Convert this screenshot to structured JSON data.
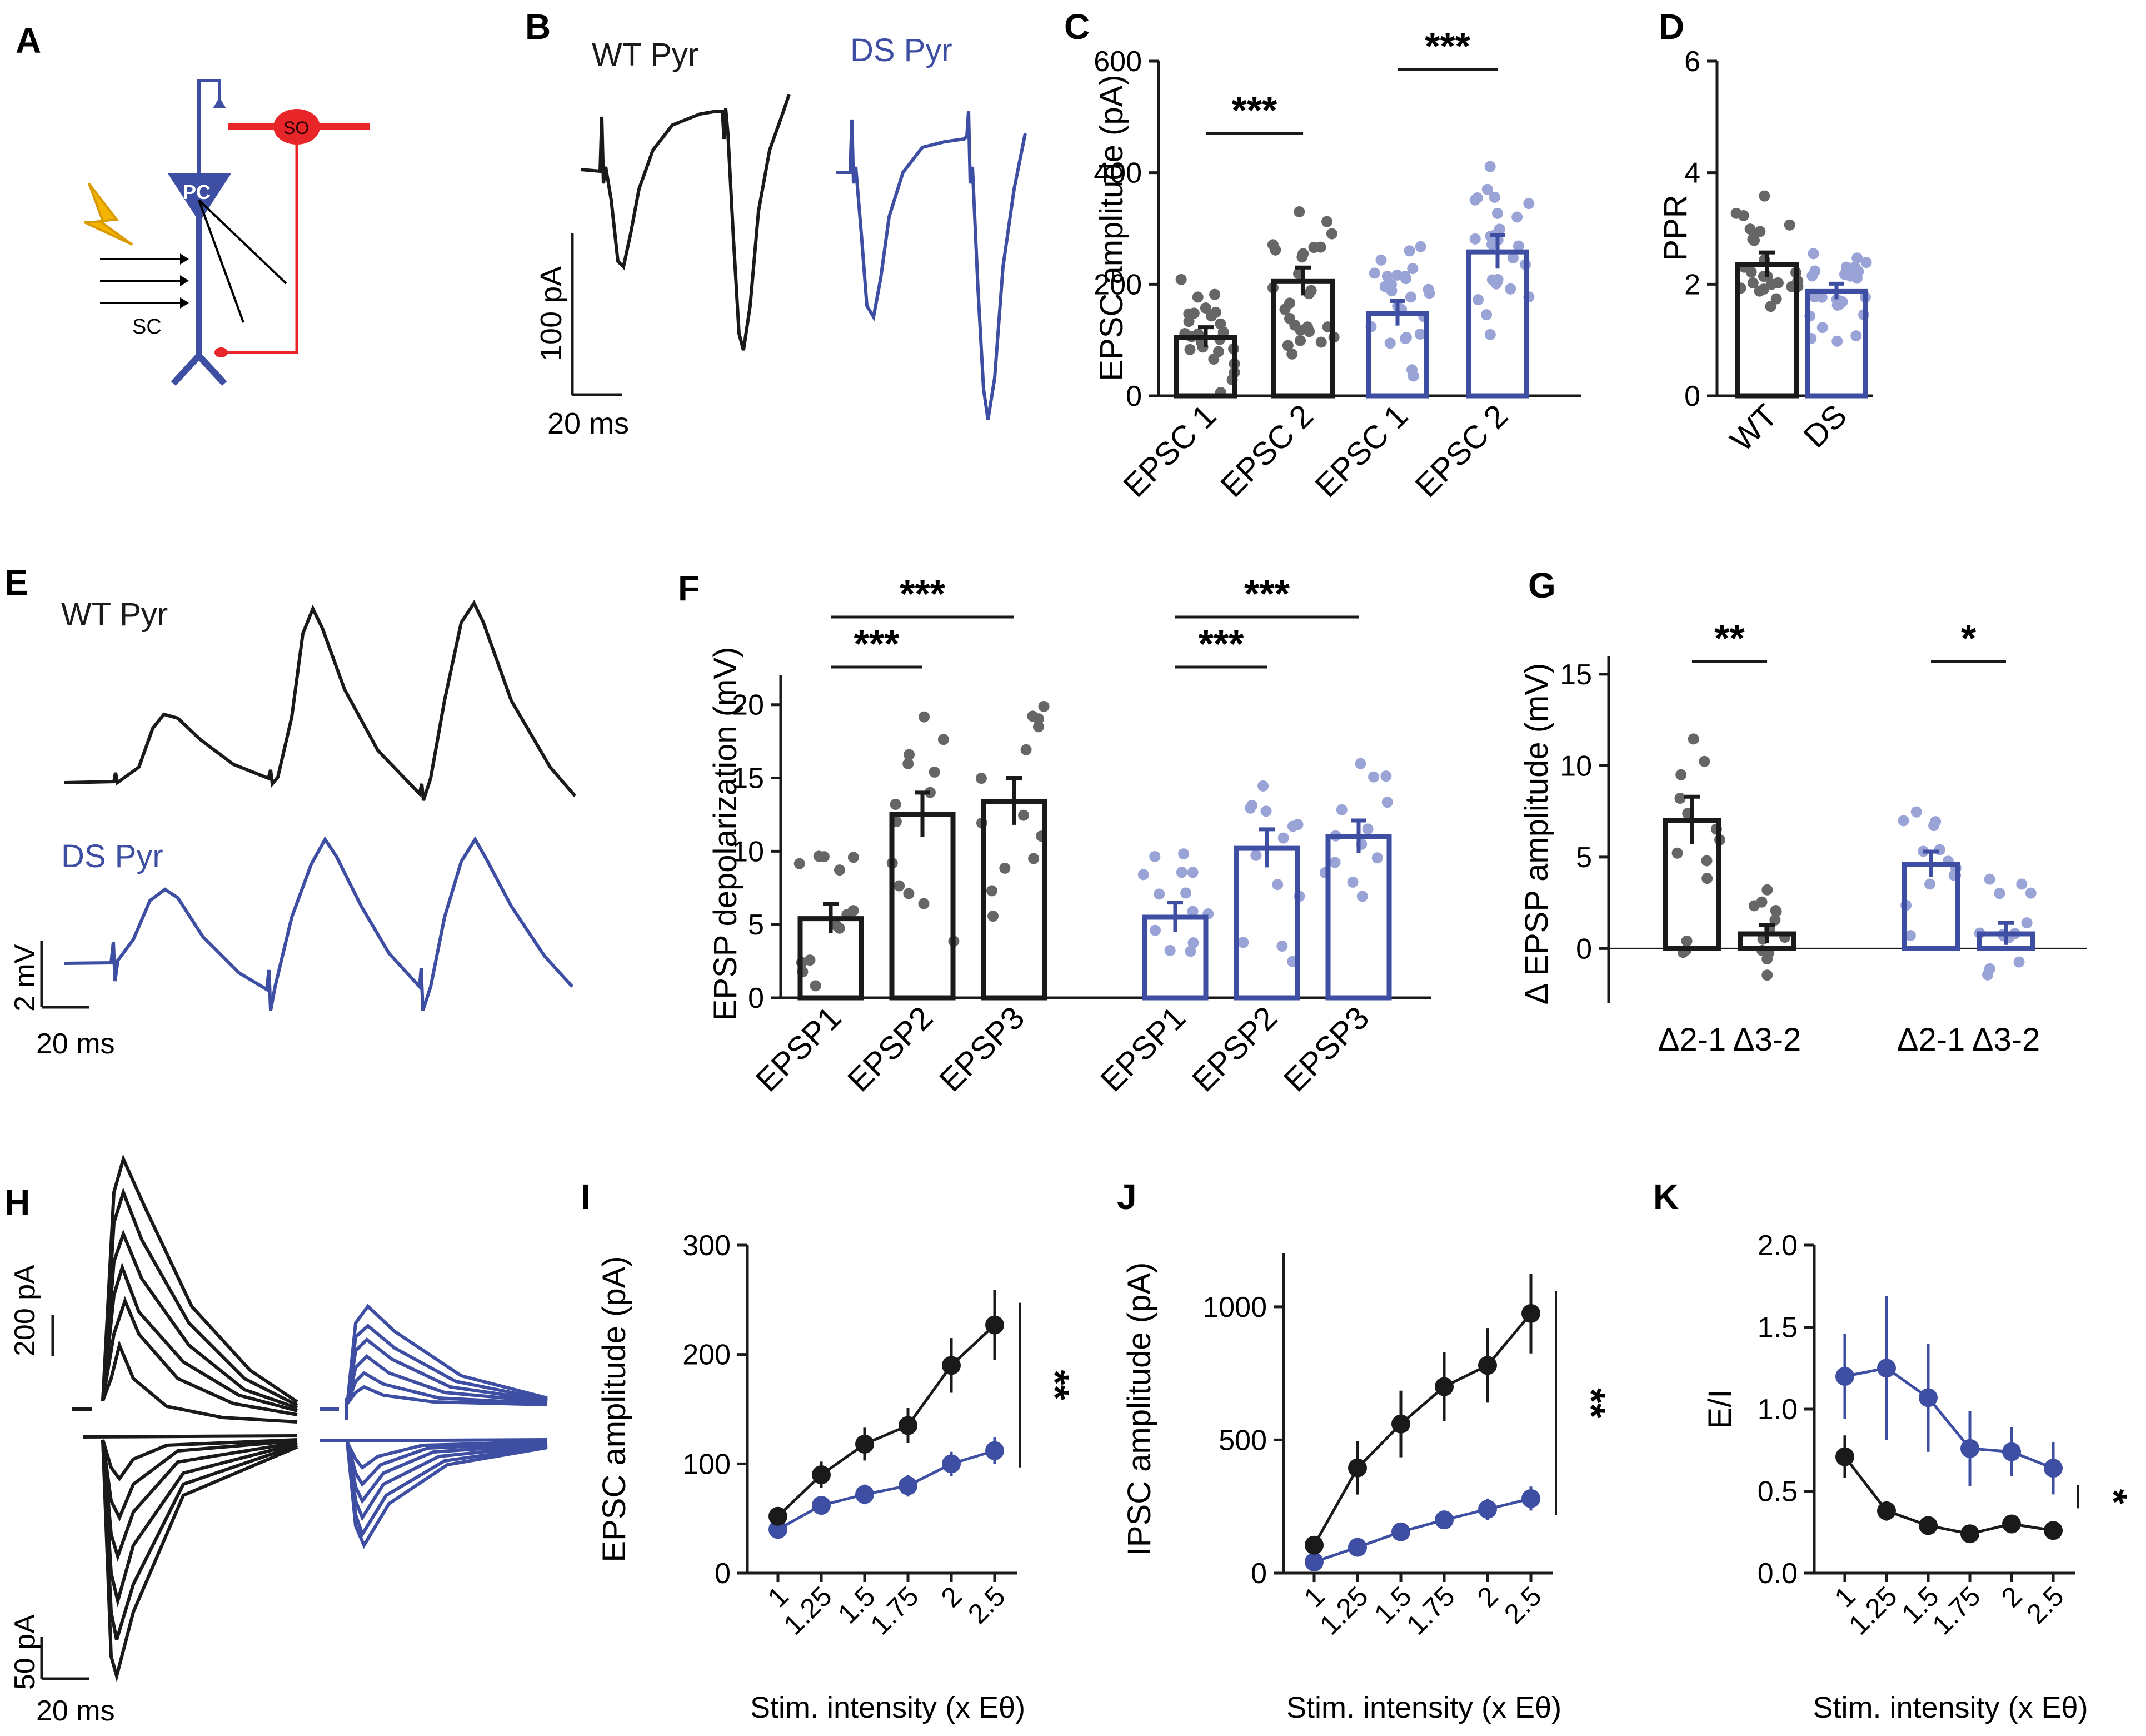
{
  "colors": {
    "wt": "#1a1a1a",
    "ds": "#3e4fa3",
    "ds_points": "#9aa3d6",
    "wt_points": "#666666",
    "so": "#e8262a",
    "bolt": "#f4b400"
  },
  "panel_labels": {
    "A": "A",
    "B": "B",
    "C": "C",
    "D": "D",
    "E": "E",
    "F": "F",
    "G": "G",
    "H": "H",
    "I": "I",
    "J": "J",
    "K": "K"
  },
  "schematic": {
    "pc_label": "PC",
    "so_label": "SO",
    "sc_label": "SC"
  },
  "panelB": {
    "wt_label": "WT Pyr",
    "ds_label": "DS Pyr",
    "y_scale": "100 pA",
    "x_scale": "20 ms"
  },
  "panelE": {
    "wt_label": "WT Pyr",
    "ds_label": "DS Pyr",
    "y_scale": "2 mV",
    "x_scale": "20 ms"
  },
  "panelH": {
    "top_scale": "200 pA",
    "bottom_scale": "50 pA",
    "x_scale": "20 ms"
  },
  "chart_data": [
    {
      "id": "C",
      "type": "bar",
      "ylabel": "EPSC amplitude (pA)",
      "ylim": [
        0,
        600
      ],
      "yticks": [
        0,
        200,
        400,
        600
      ],
      "categories": [
        "EPSC 1",
        "EPSC 2",
        "EPSC 1",
        "EPSC 2"
      ],
      "groups": [
        "WT",
        "WT",
        "DS",
        "DS"
      ],
      "values": [
        105,
        205,
        148,
        258
      ],
      "sem": [
        18,
        25,
        22,
        30
      ],
      "significance": [
        {
          "from": 0,
          "to": 1,
          "label": "***",
          "y": 475
        },
        {
          "from": 2,
          "to": 3,
          "label": "***",
          "y": 590
        }
      ]
    },
    {
      "id": "D",
      "type": "bar",
      "ylabel": "PPR",
      "ylim": [
        0,
        6
      ],
      "yticks": [
        0,
        2,
        4,
        6
      ],
      "categories": [
        "WT",
        "DS"
      ],
      "groups": [
        "WT",
        "DS"
      ],
      "values": [
        2.35,
        1.87
      ],
      "sem": [
        0.22,
        0.14
      ]
    },
    {
      "id": "F",
      "type": "bar",
      "ylabel": "EPSP depolarization (mV)",
      "ylim": [
        0,
        22
      ],
      "yticks": [
        0,
        5,
        10,
        15,
        20
      ],
      "categories": [
        "EPSP1",
        "EPSP2",
        "EPSP3",
        "EPSP1",
        "EPSP2",
        "EPSP3"
      ],
      "groups": [
        "WT",
        "WT",
        "WT",
        "DS",
        "DS",
        "DS"
      ],
      "values": [
        5.4,
        12.5,
        13.4,
        5.5,
        10.2,
        11.0
      ],
      "sem": [
        1.0,
        1.5,
        1.6,
        1.0,
        1.3,
        1.1
      ],
      "significance": [
        {
          "from": 0,
          "to": 1,
          "label": "***",
          "y": 22.2
        },
        {
          "from": 0,
          "to": 2,
          "label": "***",
          "y": 25.2
        },
        {
          "from": 3,
          "to": 4,
          "label": "***",
          "y": 22.2
        },
        {
          "from": 3,
          "to": 5,
          "label": "***",
          "y": 25.2
        }
      ]
    },
    {
      "id": "G",
      "type": "bar",
      "ylabel": "Δ EPSP amplitude (mV)",
      "ylim": [
        -3,
        16
      ],
      "yticks": [
        0,
        5,
        10,
        15
      ],
      "categories": [
        "Δ2-1",
        "Δ3-2",
        "Δ2-1",
        "Δ3-2"
      ],
      "groups": [
        "WT",
        "WT",
        "DS",
        "DS"
      ],
      "values": [
        7.0,
        0.8,
        4.6,
        0.8
      ],
      "sem": [
        1.3,
        0.5,
        0.7,
        0.6
      ],
      "significance": [
        {
          "from": 0,
          "to": 1,
          "label": "**",
          "y": 15.3
        },
        {
          "from": 2,
          "to": 3,
          "label": "*",
          "y": 15.3
        }
      ]
    },
    {
      "id": "I",
      "type": "line",
      "xlabel": "Stim. intensity (x Eθ)",
      "ylabel": "EPSC amplitude (pA)",
      "x": [
        "1",
        "1.25",
        "1.5",
        "1.75",
        "2",
        "2.5"
      ],
      "ylim": [
        0,
        300
      ],
      "yticks": [
        0,
        100,
        200,
        300
      ],
      "series": [
        {
          "name": "WT",
          "values": [
            52,
            90,
            118,
            135,
            190,
            227
          ],
          "err": [
            8,
            12,
            15,
            16,
            25,
            32
          ]
        },
        {
          "name": "DS",
          "values": [
            40,
            62,
            72,
            80,
            100,
            112
          ],
          "err": [
            5,
            8,
            9,
            10,
            11,
            12
          ]
        }
      ],
      "significance": "**"
    },
    {
      "id": "J",
      "type": "line",
      "xlabel": "Stim. intensity (x Eθ)",
      "ylabel": "IPSC amplitude (pA)",
      "x": [
        "1",
        "1.25",
        "1.5",
        "1.75",
        "2",
        "2.5"
      ],
      "ylim": [
        0,
        1200
      ],
      "yticks": [
        0,
        500,
        1000
      ],
      "series": [
        {
          "name": "WT",
          "values": [
            105,
            395,
            560,
            700,
            780,
            975
          ],
          "err": [
            25,
            100,
            125,
            130,
            140,
            150
          ]
        },
        {
          "name": "DS",
          "values": [
            42,
            97,
            155,
            200,
            240,
            280
          ],
          "err": [
            10,
            15,
            35,
            35,
            40,
            45
          ]
        }
      ],
      "significance": "**"
    },
    {
      "id": "K",
      "type": "line",
      "xlabel": "Stim. intensity (x Eθ)",
      "ylabel": "E/I",
      "x": [
        "1",
        "1.25",
        "1.5",
        "1.75",
        "2",
        "2.5"
      ],
      "ylim": [
        0,
        2.0
      ],
      "yticks": [
        0.0,
        0.5,
        1.0,
        1.5,
        2.0
      ],
      "series": [
        {
          "name": "WT",
          "values": [
            0.71,
            0.38,
            0.29,
            0.24,
            0.3,
            0.26
          ],
          "err": [
            0.13,
            0.06,
            0.03,
            0.02,
            0.03,
            0.02
          ]
        },
        {
          "name": "DS",
          "values": [
            1.2,
            1.25,
            1.07,
            0.76,
            0.74,
            0.64
          ],
          "err": [
            0.26,
            0.44,
            0.33,
            0.23,
            0.15,
            0.16
          ]
        }
      ],
      "significance": "*"
    }
  ]
}
